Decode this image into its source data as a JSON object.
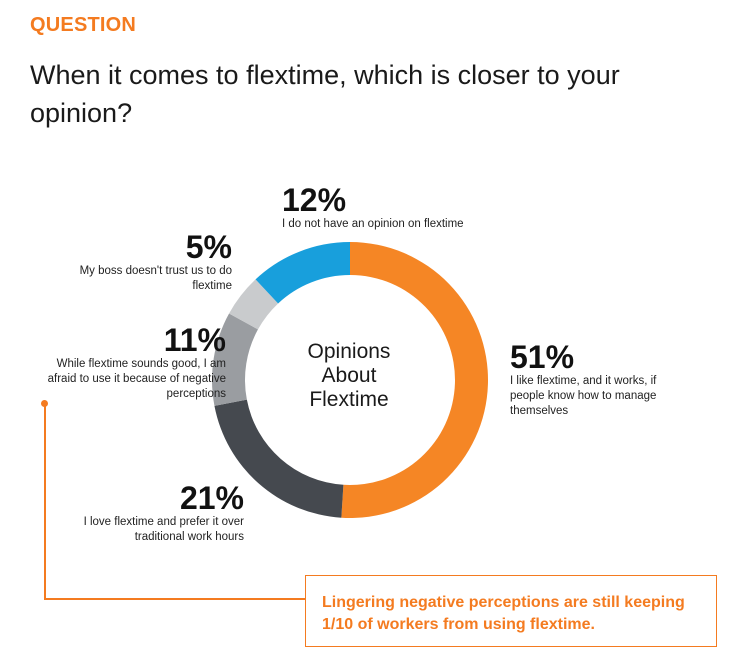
{
  "header": {
    "label": "QUESTION",
    "title": "When it comes to flextime, which is closer to your opinion?"
  },
  "chart_data": {
    "type": "pie",
    "title": "Opinions About Flextime",
    "center_text": [
      "Opinions",
      "About",
      "Flextime"
    ],
    "slices": [
      {
        "value": 51,
        "pct_label": "51%",
        "description": "I like flextime, and it works, if people know how to manage themselves",
        "color": "#f58625"
      },
      {
        "value": 21,
        "pct_label": "21%",
        "description": "I love flextime and prefer it over traditional work hours",
        "color": "#45494f"
      },
      {
        "value": 11,
        "pct_label": "11%",
        "description": "While flextime sounds good, I am afraid to use it because of negative perceptions",
        "color": "#9a9da1"
      },
      {
        "value": 5,
        "pct_label": "5%",
        "description": "My boss doesn't trust us to do flextime",
        "color": "#c9cbcd"
      },
      {
        "value": 12,
        "pct_label": "12%",
        "description": "I do not have an opinion on flextime",
        "color": "#189fdc"
      }
    ]
  },
  "callout": {
    "text": "Lingering negative perceptions are still keeping 1/10 of workers from using flextime.",
    "color": "#f47b20"
  }
}
